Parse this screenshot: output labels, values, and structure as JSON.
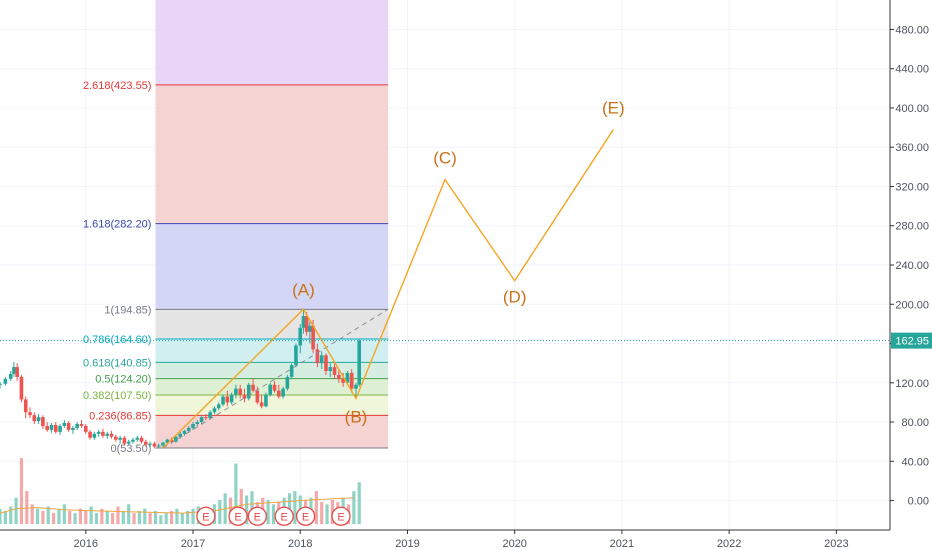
{
  "chart_data": {
    "type": "candlestick",
    "symbol_price": "162.95",
    "y_axis": {
      "min": -30,
      "max": 510,
      "ticks": [
        "480.00",
        "440.00",
        "400.00",
        "360.00",
        "320.00",
        "280.00",
        "240.00",
        "200.00",
        "160.00",
        "120.00",
        "80.00",
        "40.00",
        "0.00"
      ],
      "tick_values": [
        480,
        440,
        400,
        360,
        320,
        280,
        240,
        200,
        160,
        120,
        80,
        40,
        0
      ]
    },
    "x_axis": {
      "ticks": [
        "2016",
        "2017",
        "2018",
        "2019",
        "2020",
        "2021",
        "2022",
        "2023"
      ],
      "tick_years": [
        2016,
        2017,
        2018,
        2019,
        2020,
        2021,
        2022,
        2023
      ],
      "range": [
        2015.2,
        2023.5
      ]
    },
    "current_price": 162.95,
    "fib_levels": [
      {
        "label": "0(53.50)",
        "value": 53.5,
        "color": "#787b86",
        "fill": "#f6d1d1"
      },
      {
        "label": "0.236(86.85)",
        "value": 86.85,
        "color": "#e53935",
        "fill": "#eef5d8"
      },
      {
        "label": "0.382(107.50)",
        "value": 107.5,
        "color": "#7cb342",
        "fill": "#dcefd2"
      },
      {
        "label": "0.5(124.20)",
        "value": 124.2,
        "color": "#43a047",
        "fill": "#d4ede0"
      },
      {
        "label": "0.618(140.85)",
        "value": 140.85,
        "color": "#26a69a",
        "fill": "#cfeef0"
      },
      {
        "label": "0.786(164.60)",
        "value": 164.6,
        "color": "#00acc1",
        "fill": "#e4e4e4"
      },
      {
        "label": "1(194.85)",
        "value": 194.85,
        "color": "#787b86",
        "fill": "#d2d4f4"
      },
      {
        "label": "1.618(282.20)",
        "value": 282.2,
        "color": "#3949ab",
        "fill": "#f6d1d1"
      },
      {
        "label": "2.618(423.55)",
        "value": 423.55,
        "color": "#e53935",
        "fill": "#e8d4f6"
      }
    ],
    "fib_x_range": [
      2016.65,
      2018.82
    ],
    "fib_top": 510,
    "wave_points": [
      {
        "label": "",
        "x": 2016.72,
        "y": 53.5
      },
      {
        "label": "(A)",
        "x": 2018.03,
        "y": 194.85
      },
      {
        "label": "(B)",
        "x": 2018.52,
        "y": 104
      },
      {
        "label": "(C)",
        "x": 2019.35,
        "y": 327
      },
      {
        "label": "(D)",
        "x": 2020.0,
        "y": 224
      },
      {
        "label": "(E)",
        "x": 2020.92,
        "y": 378
      }
    ],
    "wave_label_offsets": [
      [
        0,
        0
      ],
      [
        0,
        -14
      ],
      [
        0,
        24
      ],
      [
        0,
        -16
      ],
      [
        0,
        22
      ],
      [
        0,
        -16
      ]
    ],
    "trend_line": [
      {
        "x": 2016.72,
        "y": 53.5
      },
      {
        "x": 2018.82,
        "y": 195
      }
    ],
    "earnings_markers": {
      "label": "E",
      "x": [
        2017.12,
        2017.42,
        2017.6,
        2017.85,
        2018.05,
        2018.38
      ]
    },
    "candles": [
      [
        2015.2,
        118,
        121,
        114,
        119
      ],
      [
        2015.25,
        119,
        126,
        117,
        124
      ],
      [
        2015.3,
        124,
        132,
        122,
        129
      ],
      [
        2015.33,
        129,
        141,
        126,
        136
      ],
      [
        2015.36,
        136,
        140,
        122,
        126
      ],
      [
        2015.4,
        126,
        128,
        100,
        103
      ],
      [
        2015.44,
        103,
        106,
        84,
        90
      ],
      [
        2015.48,
        90,
        95,
        84,
        87
      ],
      [
        2015.52,
        87,
        90,
        78,
        81
      ],
      [
        2015.56,
        81,
        88,
        78,
        85
      ],
      [
        2015.6,
        85,
        87,
        73,
        76
      ],
      [
        2015.64,
        76,
        80,
        70,
        72
      ],
      [
        2015.68,
        72,
        79,
        69,
        77
      ],
      [
        2015.72,
        77,
        80,
        68,
        70
      ],
      [
        2015.76,
        70,
        78,
        67,
        76
      ],
      [
        2015.8,
        76,
        82,
        74,
        79
      ],
      [
        2015.84,
        79,
        81,
        70,
        72
      ],
      [
        2015.88,
        72,
        76,
        68,
        74
      ],
      [
        2015.92,
        74,
        80,
        72,
        78
      ],
      [
        2015.96,
        78,
        82,
        74,
        76
      ],
      [
        2016.0,
        76,
        78,
        68,
        70
      ],
      [
        2016.04,
        70,
        72,
        62,
        64
      ],
      [
        2016.08,
        64,
        70,
        62,
        68
      ],
      [
        2016.12,
        68,
        72,
        65,
        70
      ],
      [
        2016.16,
        70,
        73,
        64,
        66
      ],
      [
        2016.2,
        66,
        70,
        63,
        68
      ],
      [
        2016.24,
        68,
        71,
        63,
        65
      ],
      [
        2016.28,
        65,
        67,
        60,
        62
      ],
      [
        2016.32,
        62,
        66,
        58,
        64
      ],
      [
        2016.36,
        64,
        66,
        56,
        58
      ],
      [
        2016.4,
        58,
        62,
        56,
        60
      ],
      [
        2016.44,
        60,
        64,
        58,
        62
      ],
      [
        2016.48,
        62,
        66,
        60,
        64
      ],
      [
        2016.52,
        64,
        66,
        58,
        60
      ],
      [
        2016.56,
        60,
        62,
        55,
        57
      ],
      [
        2016.6,
        57,
        60,
        54,
        58
      ],
      [
        2016.64,
        58,
        60,
        53,
        55
      ],
      [
        2016.68,
        55,
        58,
        53.5,
        56
      ],
      [
        2016.72,
        56,
        60,
        54,
        59
      ],
      [
        2016.76,
        59,
        63,
        57,
        62
      ],
      [
        2016.8,
        62,
        64,
        58,
        60
      ],
      [
        2016.84,
        60,
        66,
        59,
        65
      ],
      [
        2016.88,
        65,
        70,
        63,
        68
      ],
      [
        2016.92,
        68,
        72,
        66,
        71
      ],
      [
        2016.96,
        71,
        76,
        69,
        74
      ],
      [
        2017.0,
        74,
        80,
        72,
        78
      ],
      [
        2017.04,
        78,
        82,
        76,
        80
      ],
      [
        2017.08,
        80,
        86,
        78,
        85
      ],
      [
        2017.12,
        85,
        88,
        82,
        84
      ],
      [
        2017.16,
        84,
        92,
        83,
        90
      ],
      [
        2017.2,
        90,
        96,
        88,
        94
      ],
      [
        2017.24,
        94,
        100,
        92,
        98
      ],
      [
        2017.28,
        98,
        108,
        96,
        106
      ],
      [
        2017.32,
        106,
        112,
        96,
        100
      ],
      [
        2017.36,
        100,
        110,
        98,
        108
      ],
      [
        2017.4,
        108,
        118,
        104,
        114
      ],
      [
        2017.44,
        114,
        118,
        104,
        108
      ],
      [
        2017.48,
        108,
        114,
        100,
        104
      ],
      [
        2017.52,
        104,
        120,
        102,
        118
      ],
      [
        2017.56,
        118,
        124,
        110,
        112
      ],
      [
        2017.6,
        112,
        116,
        98,
        100
      ],
      [
        2017.64,
        100,
        108,
        94,
        96
      ],
      [
        2017.68,
        96,
        110,
        95,
        108
      ],
      [
        2017.72,
        108,
        120,
        106,
        118
      ],
      [
        2017.76,
        118,
        122,
        110,
        112
      ],
      [
        2017.8,
        112,
        118,
        104,
        106
      ],
      [
        2017.84,
        106,
        116,
        104,
        114
      ],
      [
        2017.88,
        114,
        128,
        112,
        126
      ],
      [
        2017.92,
        126,
        140,
        124,
        138
      ],
      [
        2017.96,
        138,
        160,
        136,
        158
      ],
      [
        2018.0,
        158,
        180,
        150,
        176
      ],
      [
        2018.03,
        176,
        194.85,
        170,
        188
      ],
      [
        2018.06,
        188,
        192,
        168,
        172
      ],
      [
        2018.09,
        172,
        182,
        160,
        178
      ],
      [
        2018.12,
        178,
        184,
        150,
        154
      ],
      [
        2018.16,
        154,
        160,
        136,
        140
      ],
      [
        2018.2,
        140,
        152,
        134,
        148
      ],
      [
        2018.24,
        148,
        150,
        128,
        132
      ],
      [
        2018.28,
        132,
        140,
        126,
        136
      ],
      [
        2018.32,
        136,
        140,
        124,
        128
      ],
      [
        2018.36,
        128,
        134,
        120,
        124
      ],
      [
        2018.4,
        124,
        130,
        116,
        120
      ],
      [
        2018.44,
        120,
        132,
        118,
        130
      ],
      [
        2018.48,
        130,
        134,
        110,
        114
      ],
      [
        2018.52,
        114,
        120,
        104,
        118
      ],
      [
        2018.55,
        118,
        165,
        116,
        162.95
      ]
    ],
    "volume": {
      "x": [
        2015.2,
        2015.25,
        2015.3,
        2015.35,
        2015.4,
        2015.45,
        2015.5,
        2015.55,
        2015.6,
        2015.65,
        2015.7,
        2015.75,
        2015.8,
        2015.85,
        2015.9,
        2015.95,
        2016.0,
        2016.05,
        2016.1,
        2016.15,
        2016.2,
        2016.25,
        2016.3,
        2016.35,
        2016.4,
        2016.45,
        2016.5,
        2016.55,
        2016.6,
        2016.65,
        2016.7,
        2016.75,
        2016.8,
        2016.85,
        2016.9,
        2016.95,
        2017.0,
        2017.05,
        2017.1,
        2017.15,
        2017.2,
        2017.25,
        2017.3,
        2017.35,
        2017.4,
        2017.45,
        2017.5,
        2017.55,
        2017.6,
        2017.65,
        2017.7,
        2017.75,
        2017.8,
        2017.85,
        2017.9,
        2017.95,
        2018.0,
        2018.05,
        2018.1,
        2018.15,
        2018.2,
        2018.25,
        2018.3,
        2018.35,
        2018.4,
        2018.45,
        2018.5,
        2018.55
      ],
      "v": [
        14,
        12,
        16,
        24,
        60,
        30,
        18,
        14,
        12,
        16,
        10,
        14,
        18,
        12,
        10,
        14,
        12,
        16,
        10,
        14,
        12,
        10,
        16,
        12,
        18,
        10,
        12,
        14,
        10,
        12,
        8,
        10,
        12,
        14,
        10,
        12,
        14,
        16,
        12,
        14,
        18,
        22,
        28,
        24,
        55,
        32,
        26,
        30,
        20,
        24,
        22,
        18,
        20,
        24,
        28,
        30,
        26,
        22,
        24,
        30,
        20,
        18,
        22,
        20,
        24,
        18,
        30,
        38
      ],
      "up": [
        1,
        1,
        1,
        1,
        0,
        0,
        0,
        1,
        0,
        1,
        0,
        1,
        1,
        0,
        1,
        0,
        0,
        1,
        1,
        0,
        1,
        0,
        0,
        1,
        1,
        0,
        1,
        1,
        0,
        1,
        1,
        1,
        0,
        1,
        1,
        1,
        1,
        1,
        0,
        1,
        1,
        1,
        1,
        0,
        1,
        0,
        1,
        1,
        0,
        0,
        1,
        1,
        0,
        1,
        1,
        1,
        1,
        0,
        1,
        0,
        0,
        1,
        0,
        0,
        1,
        0,
        1,
        1
      ]
    },
    "volume_ma_curve": [
      [
        2015.2,
        10
      ],
      [
        2015.35,
        14
      ],
      [
        2015.55,
        15
      ],
      [
        2015.8,
        13
      ],
      [
        2016.1,
        12
      ],
      [
        2016.5,
        11
      ],
      [
        2016.9,
        10
      ],
      [
        2017.2,
        12
      ],
      [
        2017.5,
        18
      ],
      [
        2017.8,
        20
      ],
      [
        2018.1,
        22
      ],
      [
        2018.5,
        24
      ]
    ]
  }
}
